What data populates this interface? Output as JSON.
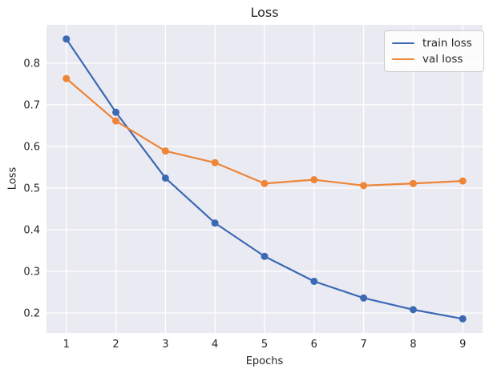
{
  "figure": {
    "background": "#ffffff",
    "plot_background": "#eaeaf2",
    "grid_color": "#ffffff",
    "text_color": "#262626"
  },
  "chart_data": {
    "type": "line",
    "title": "Loss",
    "xlabel": "Epochs",
    "ylabel": "Loss",
    "x": [
      1,
      2,
      3,
      4,
      5,
      6,
      7,
      8,
      9
    ],
    "series": [
      {
        "name": "train loss",
        "color": "#3c69b4",
        "values": [
          0.858,
          0.682,
          0.524,
          0.416,
          0.336,
          0.276,
          0.236,
          0.208,
          0.186
        ]
      },
      {
        "name": "val loss",
        "color": "#ee8537",
        "values": [
          0.763,
          0.661,
          0.589,
          0.561,
          0.511,
          0.52,
          0.506,
          0.511,
          0.517
        ]
      }
    ],
    "xticks": [
      "1",
      "2",
      "3",
      "4",
      "5",
      "6",
      "7",
      "8",
      "9"
    ],
    "yticks": [
      "0.2",
      "0.3",
      "0.4",
      "0.5",
      "0.6",
      "0.7",
      "0.8"
    ],
    "xlim": [
      0.6,
      9.4
    ],
    "ylim": [
      0.152,
      0.892
    ],
    "grid": true,
    "legend_position": "upper right",
    "marker": "circle",
    "line_width": 2.2,
    "marker_radius": 4.5
  }
}
